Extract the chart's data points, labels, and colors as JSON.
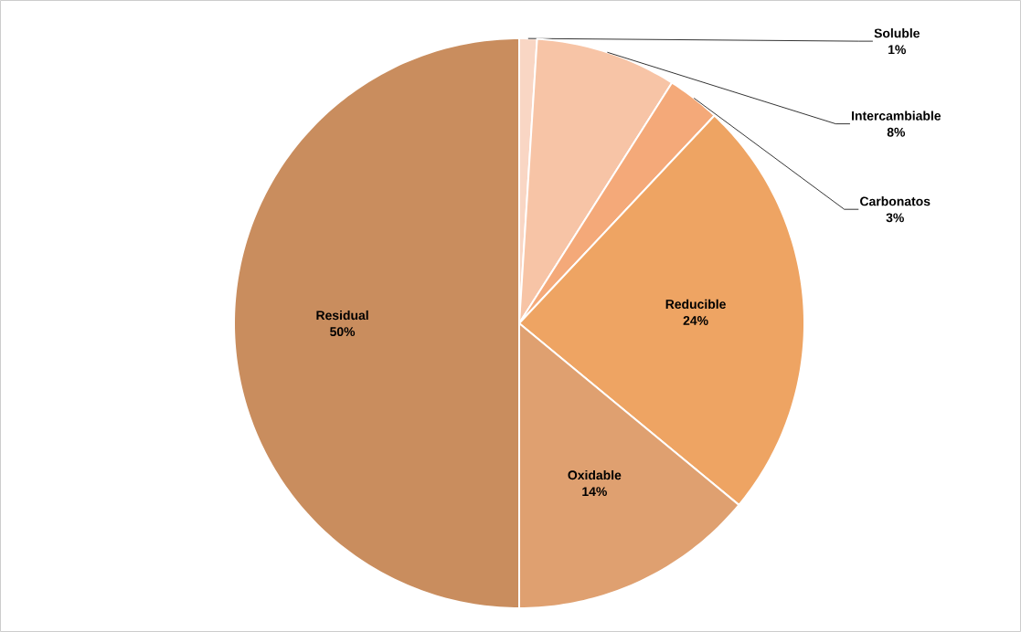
{
  "chart_data": {
    "type": "pie",
    "categories": [
      "Soluble",
      "Intercambiable",
      "Carbonatos",
      "Reducible",
      "Oxidable",
      "Residual"
    ],
    "values": [
      1,
      8,
      3,
      24,
      14,
      50
    ],
    "value_labels": [
      "1%",
      "8%",
      "3%",
      "24%",
      "14%",
      "50%"
    ],
    "colors": [
      "#f9d6c4",
      "#f7c4a6",
      "#f4a979",
      "#eea463",
      "#dfa070",
      "#c98d5e"
    ]
  }
}
